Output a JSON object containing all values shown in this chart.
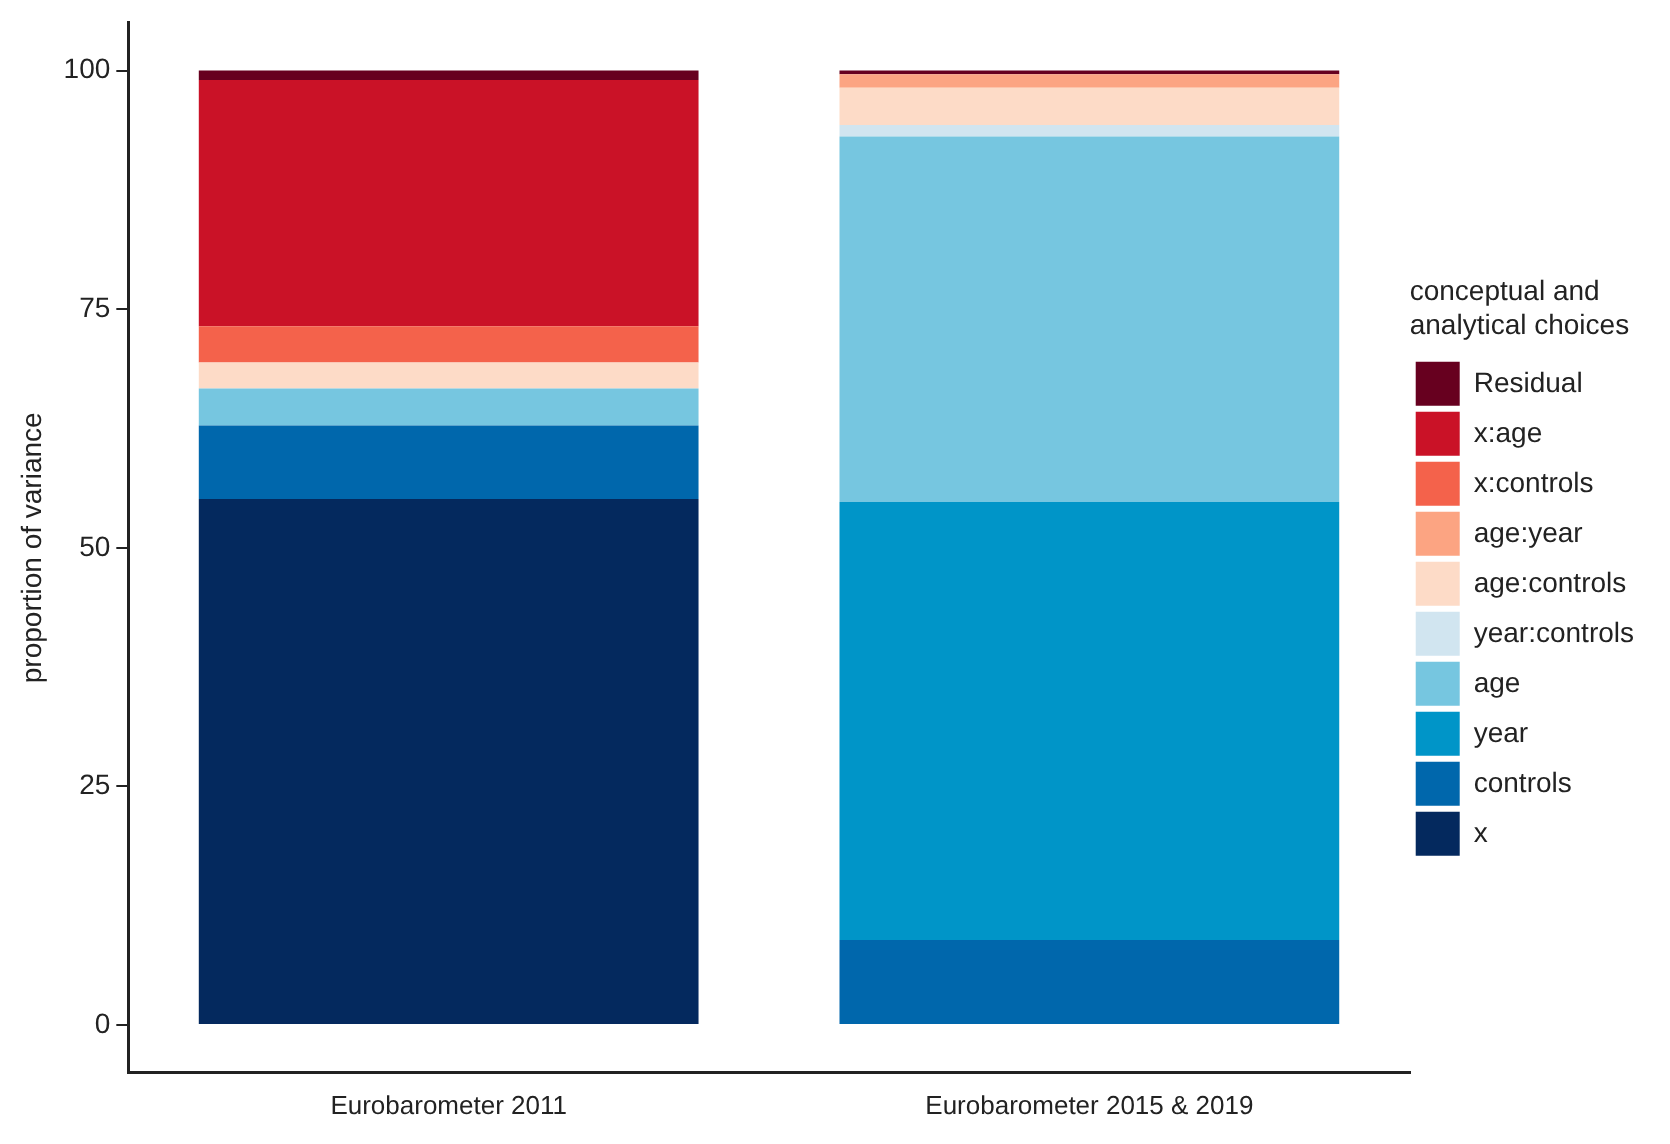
{
  "chart_data": {
    "type": "bar",
    "stacked": true,
    "ylabel": "proportion of variance",
    "legend_title": "conceptual and analytical choices",
    "legend": "right",
    "categories": [
      "Eurobarometer 2011",
      "Eurobarometer 2015 & 2019"
    ],
    "ylim": [
      -5,
      105
    ],
    "yticks": [
      0,
      25,
      50,
      75,
      100
    ],
    "grid": false,
    "series": [
      {
        "name": "x",
        "color": "#04295e",
        "values": [
          55.1,
          0
        ]
      },
      {
        "name": "controls",
        "color": "#0067ac",
        "values": [
          7.7,
          8.9
        ]
      },
      {
        "name": "year",
        "color": "#0095c8",
        "values": [
          0,
          45.9
        ]
      },
      {
        "name": "age",
        "color": "#76c6e0",
        "values": [
          3.9,
          38.3
        ]
      },
      {
        "name": "year:controls",
        "color": "#d1e5f0",
        "values": [
          0,
          1.2
        ]
      },
      {
        "name": "age:controls",
        "color": "#fddbc7",
        "values": [
          2.7,
          3.9
        ]
      },
      {
        "name": "age:year",
        "color": "#fca482",
        "values": [
          0,
          1.4
        ]
      },
      {
        "name": "x:controls",
        "color": "#f4624b",
        "values": [
          3.8,
          0
        ]
      },
      {
        "name": "x:age",
        "color": "#ca1227",
        "values": [
          25.8,
          0
        ]
      },
      {
        "name": "Residual",
        "color": "#67001f",
        "values": [
          1.0,
          0.4
        ]
      }
    ]
  }
}
